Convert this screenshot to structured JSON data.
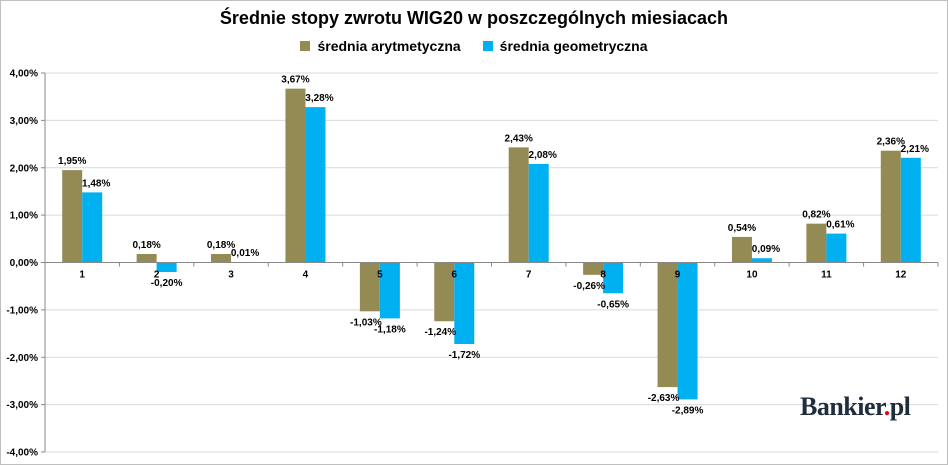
{
  "chart_data": {
    "type": "bar",
    "title": "Średnie stopy zwrotu WIG20 w poszczególnych miesiacach",
    "categories": [
      "1",
      "2",
      "3",
      "4",
      "5",
      "6",
      "7",
      "8",
      "9",
      "10",
      "11",
      "12"
    ],
    "series": [
      {
        "name": "średnia arytmetyczna",
        "color": "#948a54",
        "values": [
          1.95,
          0.18,
          0.18,
          3.67,
          -1.03,
          -1.24,
          2.43,
          -0.26,
          -2.63,
          0.54,
          0.82,
          2.36
        ],
        "labels": [
          "1,95%",
          "0,18%",
          "0,18%",
          "3,67%",
          "-1,03%",
          "-1,24%",
          "2,43%",
          "-0,26%",
          "-2,63%",
          "0,54%",
          "0,82%",
          "2,36%"
        ]
      },
      {
        "name": "średnia geometryczna",
        "color": "#00b0f0",
        "values": [
          1.48,
          -0.2,
          0.01,
          3.28,
          -1.18,
          -1.72,
          2.08,
          -0.65,
          -2.89,
          0.09,
          0.61,
          2.21
        ],
        "labels": [
          "1,48%",
          "-0,20%",
          "0,01%",
          "3,28%",
          "-1,18%",
          "-1,72%",
          "2,08%",
          "-0,65%",
          "-2,89%",
          "0,09%",
          "0,61%",
          "2,21%"
        ]
      }
    ],
    "ylim": [
      -4,
      4
    ],
    "yticks": [
      "4,00%",
      "3,00%",
      "2,00%",
      "1,00%",
      "0,00%",
      "-1,00%",
      "-2,00%",
      "-3,00%",
      "-4,00%"
    ],
    "grid": true,
    "legend": "top"
  },
  "watermark": {
    "name": "Bankier",
    "dot": ".",
    "suffix": "pl"
  }
}
